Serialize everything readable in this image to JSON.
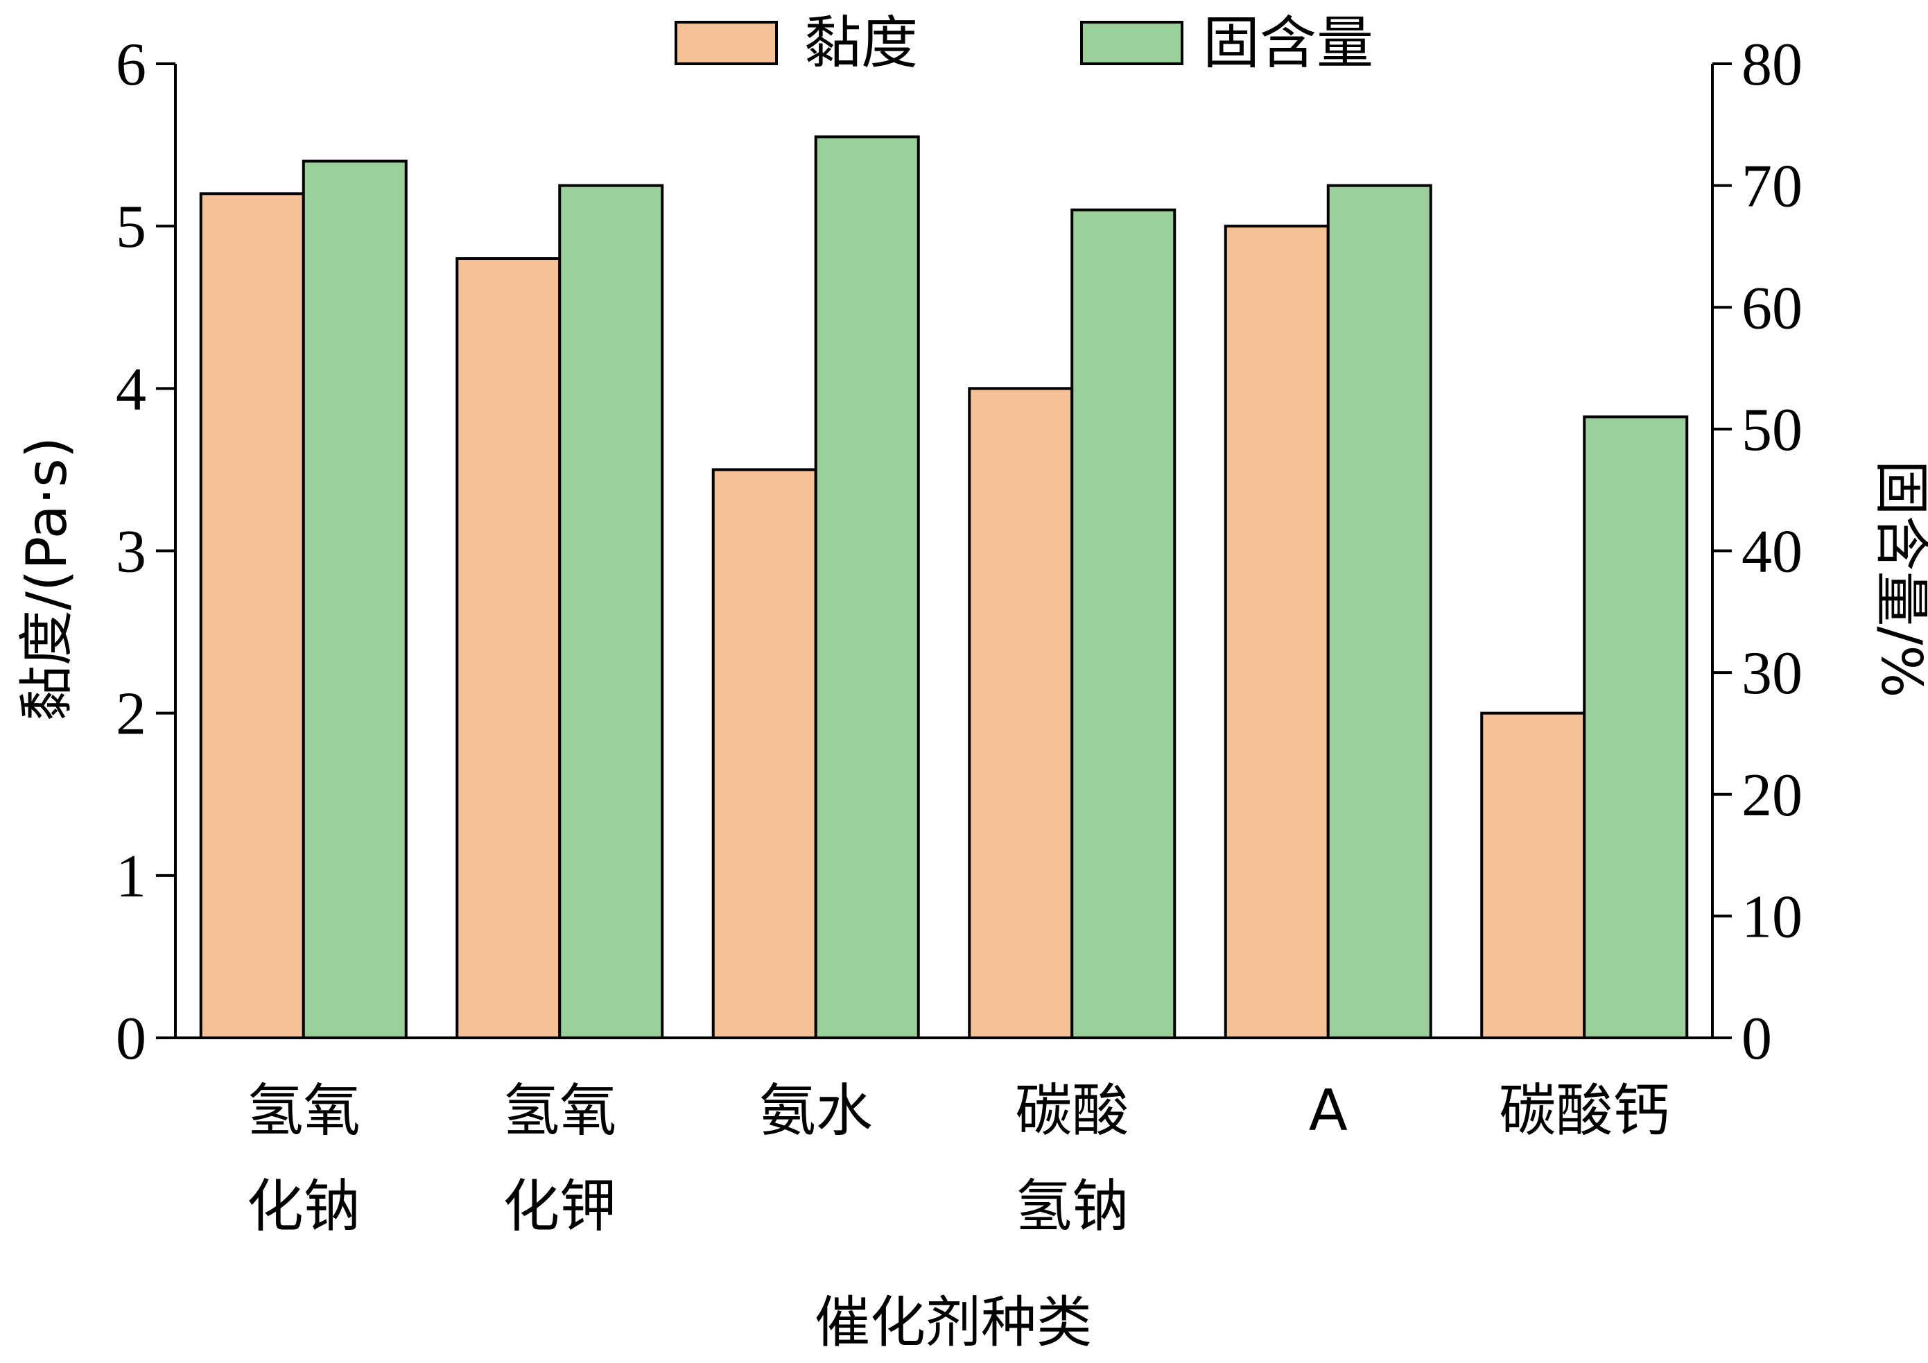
{
  "chart_data": {
    "type": "bar",
    "categories": [
      [
        "氢氧",
        "化钠"
      ],
      [
        "氢氧",
        "化钾"
      ],
      [
        "氨水"
      ],
      [
        "碳酸",
        "氢钠"
      ],
      [
        "A"
      ],
      [
        "碳酸钙"
      ]
    ],
    "series": [
      {
        "name": "黏度",
        "axis": "left",
        "color": "#F5C297",
        "values": [
          5.2,
          4.8,
          3.5,
          4.0,
          5.0,
          2.0
        ]
      },
      {
        "name": "固含量",
        "axis": "right",
        "color": "#9BD09B",
        "values": [
          72,
          70,
          74,
          68,
          70,
          51
        ]
      }
    ],
    "xlabel": "催化剂种类",
    "ylabel": "黏度/(Pa·s)",
    "y2label": "固含量/%",
    "ylim": [
      0,
      6
    ],
    "y2lim": [
      0,
      80
    ],
    "yticks": [
      "0",
      "1",
      "2",
      "3",
      "4",
      "5",
      "6"
    ],
    "y2ticks": [
      "0",
      "10",
      "20",
      "30",
      "40",
      "50",
      "60",
      "70",
      "80"
    ],
    "legend_position": "top-center",
    "grid": false
  }
}
